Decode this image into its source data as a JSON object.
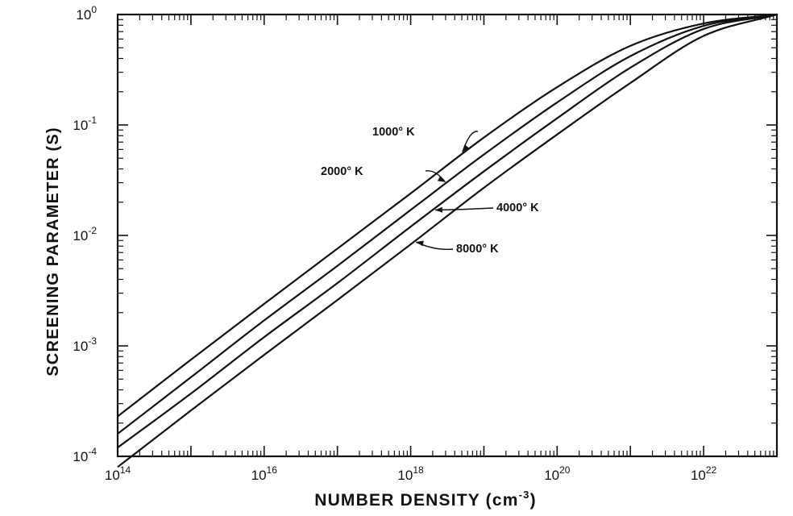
{
  "chart_data": {
    "type": "line",
    "title": "",
    "xlabel_base": "NUMBER DENSITY (cm",
    "xlabel_exp": "-3",
    "xlabel_close": ")",
    "ylabel": "SCREENING PARAMETER (S)",
    "xscale": "log",
    "yscale": "log",
    "xlim": [
      100000000000000.0,
      1e+23
    ],
    "ylim": [
      0.0001,
      1
    ],
    "grid": false,
    "x_ticks": [
      {
        "base": "10",
        "exp": "14"
      },
      {
        "base": "10",
        "exp": "16"
      },
      {
        "base": "10",
        "exp": "18"
      },
      {
        "base": "10",
        "exp": "20"
      },
      {
        "base": "10",
        "exp": "22"
      }
    ],
    "x_tick_values": [
      100000000000000.0,
      1e+16,
      1e+18,
      1e+20,
      1e+22
    ],
    "y_ticks": [
      {
        "base": "10",
        "exp": "-4"
      },
      {
        "base": "10",
        "exp": "-3"
      },
      {
        "base": "10",
        "exp": "-2"
      },
      {
        "base": "10",
        "exp": "-1"
      },
      {
        "base": "10",
        "exp": "0"
      }
    ],
    "y_tick_values": [
      0.0001,
      0.001,
      0.01,
      0.1,
      1
    ],
    "series": [
      {
        "name": "1000° K",
        "x": [
          100000000000000.0,
          1000000000000000.0,
          1e+16,
          1e+17,
          1e+18,
          1e+19,
          1e+20,
          1e+21,
          1e+22,
          1e+23
        ],
        "values": [
          0.00023,
          0.00075,
          0.0024,
          0.0076,
          0.024,
          0.077,
          0.22,
          0.52,
          0.83,
          1.0
        ]
      },
      {
        "name": "2000° K",
        "x": [
          100000000000000.0,
          1000000000000000.0,
          1e+16,
          1e+17,
          1e+18,
          1e+19,
          1e+20,
          1e+21,
          1e+22,
          1e+23
        ],
        "values": [
          0.00016,
          0.00052,
          0.0017,
          0.0053,
          0.017,
          0.054,
          0.16,
          0.42,
          0.79,
          1.0
        ]
      },
      {
        "name": "4000° K",
        "x": [
          100000000000000.0,
          1000000000000000.0,
          1e+16,
          1e+17,
          1e+18,
          1e+19,
          1e+20,
          1e+21,
          1e+22,
          1e+23
        ],
        "values": [
          0.00012,
          0.00037,
          0.0012,
          0.0037,
          0.012,
          0.038,
          0.115,
          0.33,
          0.74,
          1.0
        ]
      },
      {
        "name": "8000° K",
        "x": [
          100000000000000.0,
          1000000000000000.0,
          1e+16,
          1e+17,
          1e+18,
          1e+19,
          1e+20,
          1e+21,
          1e+22,
          1e+23
        ],
        "values": [
          8e-05,
          0.00026,
          0.00083,
          0.0026,
          0.0083,
          0.027,
          0.082,
          0.24,
          0.64,
          1.0
        ]
      }
    ],
    "annotations": [
      {
        "text": "1000° K",
        "series": 0
      },
      {
        "text": "2000° K",
        "series": 1
      },
      {
        "text": "4000° K",
        "series": 2
      },
      {
        "text": "8000° K",
        "series": 3
      }
    ]
  }
}
